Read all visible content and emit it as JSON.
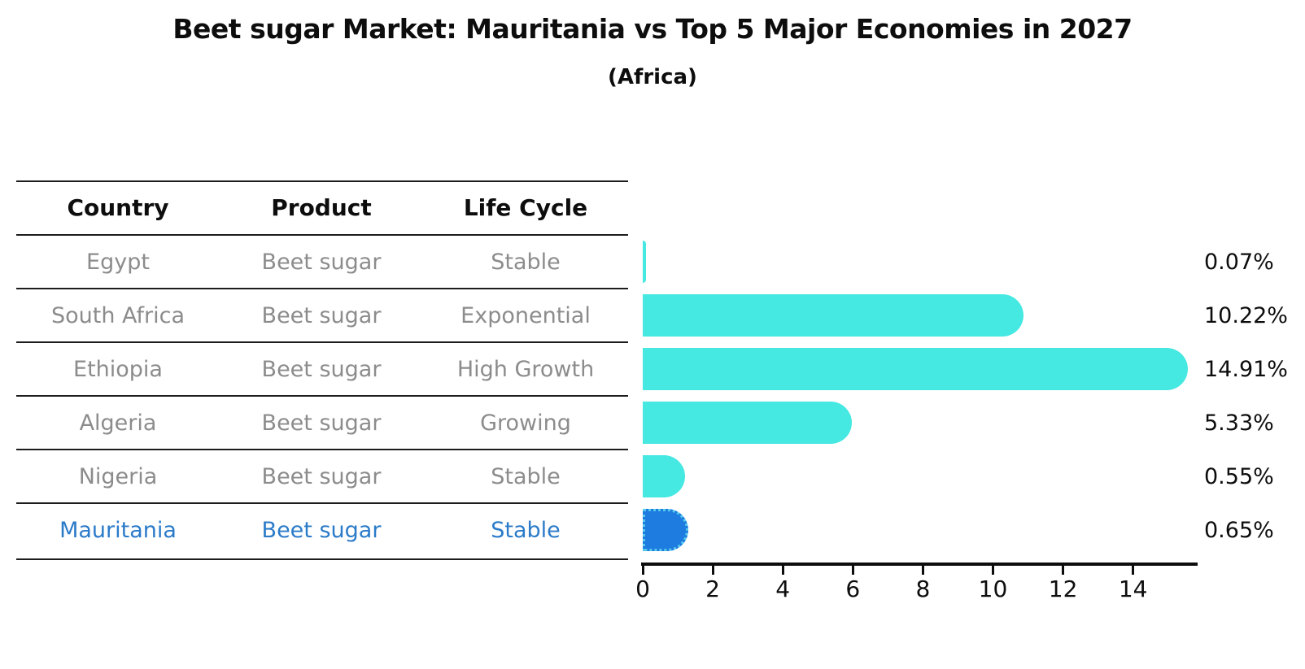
{
  "title": "Beet sugar Market: Mauritania vs Top 5 Major Economies in 2027",
  "subtitle": "(Africa)",
  "table": {
    "columns": [
      {
        "label": "Country"
      },
      {
        "label": "Product"
      },
      {
        "label": "Life Cycle"
      }
    ],
    "rows": [
      {
        "country": "Egypt",
        "product": "Beet sugar",
        "life_cycle": "Stable",
        "highlighted": false
      },
      {
        "country": "South Africa",
        "product": "Beet sugar",
        "life_cycle": "Exponential",
        "highlighted": false
      },
      {
        "country": "Ethiopia",
        "product": "Beet sugar",
        "life_cycle": "High Growth",
        "highlighted": false
      },
      {
        "country": "Algeria",
        "product": "Beet sugar",
        "life_cycle": "Growing",
        "highlighted": false
      },
      {
        "country": "Nigeria",
        "product": "Beet sugar",
        "life_cycle": "Stable",
        "highlighted": false
      },
      {
        "country": "Mauritania",
        "product": "Beet sugar",
        "life_cycle": "Stable",
        "highlighted": true
      }
    ],
    "highlighted_row": "Mauritania"
  },
  "chart_data": {
    "type": "bar",
    "orientation": "horizontal",
    "title": "Beet sugar Market: Mauritania vs Top 5 Major Economies in 2027",
    "subtitle": "(Africa)",
    "categories": [
      "Egypt",
      "South Africa",
      "Ethiopia",
      "Algeria",
      "Nigeria",
      "Mauritania"
    ],
    "values": [
      0.07,
      10.22,
      14.91,
      5.33,
      0.55,
      0.65
    ],
    "value_labels": [
      "0.07%",
      "10.22%",
      "14.91%",
      "5.33%",
      "0.55%",
      "0.65%"
    ],
    "unit": "%",
    "highlight_index": 5,
    "xlim": [
      0,
      15.8
    ],
    "xticks": [
      0,
      2,
      4,
      6,
      8,
      10,
      12,
      14
    ],
    "xtick_labels": [
      "0",
      "2",
      "4",
      "6",
      "8",
      "10",
      "12",
      "14"
    ],
    "grid": false,
    "legend": false,
    "bar_color": "#46e8e2",
    "highlight_bar_color": "#1e7be0",
    "highlight_bar_edge_color": "#55c9ec"
  },
  "colors": {
    "background": "#ffffff",
    "text": "#0d0d0d",
    "row_text": "#8c8c8c",
    "highlight_text": "#2b7bc9",
    "table_line": "#1c1c1c",
    "bar": "#46e8e2",
    "highlight_bar": "#1e7be0",
    "highlight_bar_edge": "#55c9ec"
  }
}
